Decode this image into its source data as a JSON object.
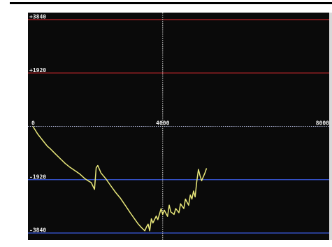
{
  "chart_data": {
    "type": "line",
    "title": "",
    "xlabel": "",
    "ylabel": "",
    "xlim": [
      0,
      9000
    ],
    "ylim": [
      -3840,
      3840
    ],
    "x_tick_labels": [
      "0",
      "4000",
      "8000"
    ],
    "y_tick_labels": [
      "+3840",
      "+1920",
      "-1920",
      "-3840"
    ],
    "x_ticks": [
      0,
      4000,
      8000
    ],
    "y_ticks": [
      3840,
      1920,
      -1920,
      -3840
    ],
    "grid": true,
    "colors": {
      "background": "#0a0a0a",
      "positive_lines": "#c0262b",
      "negative_lines": "#3a5be0",
      "zero_line": "#cfd6ff",
      "vertical_gridline": "#d0d0d0",
      "series": "#e9e87a",
      "labels": "#f0f0f0"
    },
    "series": [
      {
        "values": [
          [
            0,
            0
          ],
          [
            150,
            -280
          ],
          [
            300,
            -500
          ],
          [
            450,
            -720
          ],
          [
            550,
            -820
          ],
          [
            700,
            -1000
          ],
          [
            850,
            -1170
          ],
          [
            1000,
            -1340
          ],
          [
            1150,
            -1480
          ],
          [
            1300,
            -1600
          ],
          [
            1450,
            -1720
          ],
          [
            1600,
            -1880
          ],
          [
            1700,
            -1960
          ],
          [
            1800,
            -2030
          ],
          [
            1850,
            -2150
          ],
          [
            1900,
            -2270
          ],
          [
            1950,
            -1490
          ],
          [
            2000,
            -1410
          ],
          [
            2100,
            -1680
          ],
          [
            2250,
            -1890
          ],
          [
            2400,
            -2140
          ],
          [
            2550,
            -2380
          ],
          [
            2700,
            -2590
          ],
          [
            2850,
            -2850
          ],
          [
            3000,
            -3110
          ],
          [
            3150,
            -3360
          ],
          [
            3250,
            -3520
          ],
          [
            3350,
            -3650
          ],
          [
            3450,
            -3760
          ],
          [
            3500,
            -3620
          ],
          [
            3550,
            -3520
          ],
          [
            3600,
            -3760
          ],
          [
            3650,
            -3330
          ],
          [
            3700,
            -3480
          ],
          [
            3800,
            -3230
          ],
          [
            3850,
            -3360
          ],
          [
            3950,
            -2960
          ],
          [
            4000,
            -3170
          ],
          [
            4050,
            -3020
          ],
          [
            4150,
            -3240
          ],
          [
            4200,
            -2840
          ],
          [
            4250,
            -3080
          ],
          [
            4350,
            -3170
          ],
          [
            4400,
            -2960
          ],
          [
            4500,
            -3110
          ],
          [
            4550,
            -2790
          ],
          [
            4650,
            -2960
          ],
          [
            4700,
            -2620
          ],
          [
            4800,
            -2840
          ],
          [
            4850,
            -2470
          ],
          [
            4900,
            -2620
          ],
          [
            4950,
            -2330
          ],
          [
            5000,
            -2540
          ],
          [
            5050,
            -1990
          ],
          [
            5100,
            -1550
          ],
          [
            5150,
            -1780
          ],
          [
            5200,
            -1960
          ],
          [
            5300,
            -1680
          ],
          [
            5350,
            -1510
          ]
        ]
      }
    ]
  }
}
